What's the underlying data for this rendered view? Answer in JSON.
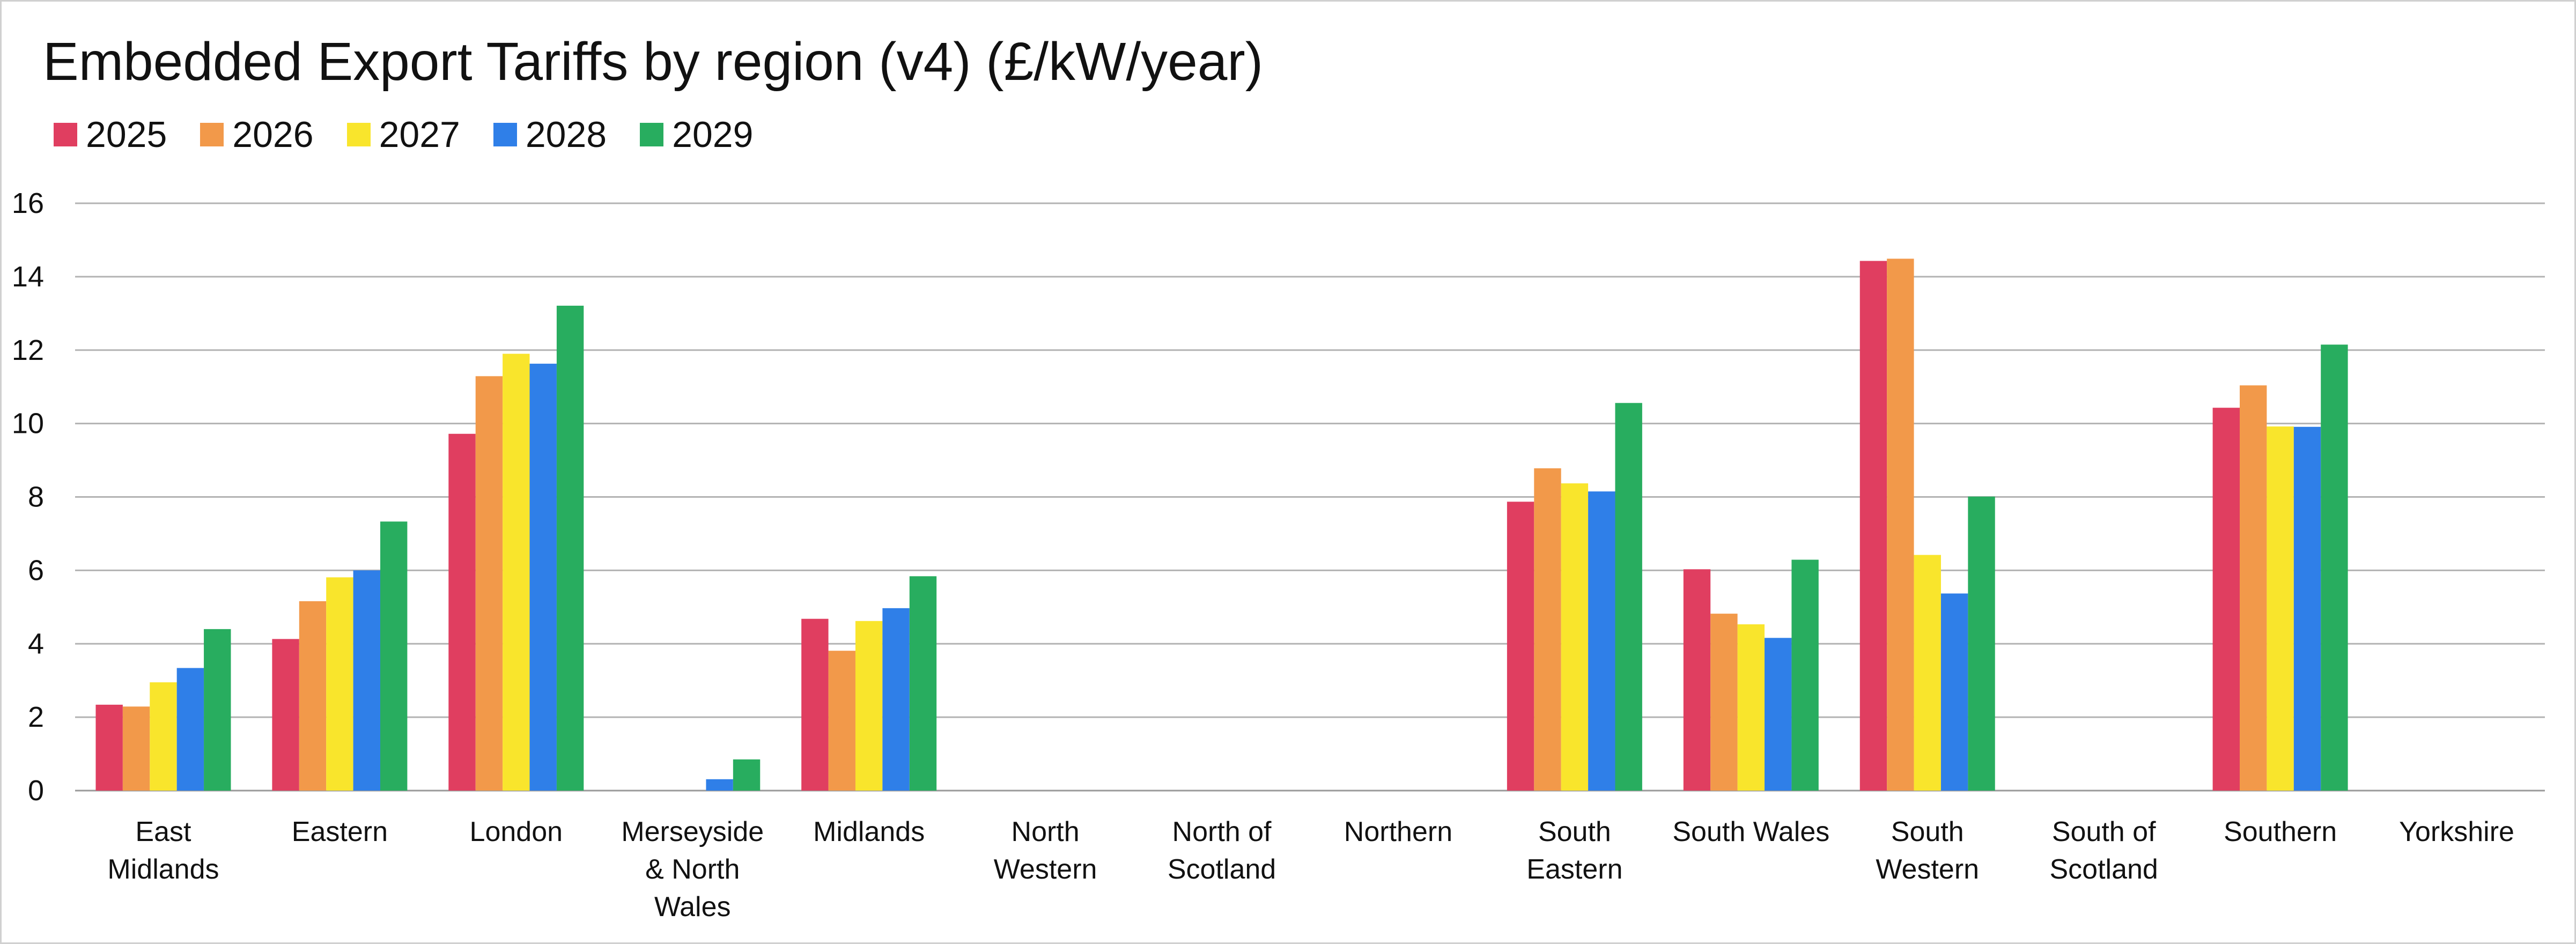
{
  "chart_data": {
    "type": "bar",
    "title": "Embedded Export Tariffs by region (v4) (£/kW/year)",
    "xlabel": "",
    "ylabel": "",
    "ylim": [
      0,
      16
    ],
    "yticks": [
      0,
      2,
      4,
      6,
      8,
      10,
      12,
      14,
      16
    ],
    "grid": true,
    "legend_position": "top-left",
    "categories": [
      "East Midlands",
      "Eastern",
      "London",
      "Merseyside & North Wales",
      "Midlands",
      "North Western",
      "North of Scotland",
      "Northern",
      "South Eastern",
      "South Wales",
      "South Western",
      "South of Scotland",
      "Southern",
      "Yorkshire"
    ],
    "category_label_lines": [
      [
        "East",
        "Midlands"
      ],
      [
        "Eastern"
      ],
      [
        "London"
      ],
      [
        "Merseyside",
        "& North",
        "Wales"
      ],
      [
        "Midlands"
      ],
      [
        "North",
        "Western"
      ],
      [
        "North of",
        "Scotland"
      ],
      [
        "Northern"
      ],
      [
        "South",
        "Eastern"
      ],
      [
        "South Wales"
      ],
      [
        "South",
        "Western"
      ],
      [
        "South of",
        "Scotland"
      ],
      [
        "Southern"
      ],
      [
        "Yorkshire"
      ]
    ],
    "series": [
      {
        "name": "2025",
        "color": "#e03e60",
        "values": [
          2.34,
          4.13,
          9.72,
          0,
          4.68,
          0,
          0,
          0,
          7.87,
          6.03,
          14.43,
          0,
          10.43,
          0
        ]
      },
      {
        "name": "2026",
        "color": "#f2994a",
        "values": [
          2.29,
          5.16,
          11.29,
          0,
          3.81,
          0,
          0,
          0,
          8.78,
          4.82,
          14.49,
          0,
          11.04,
          0
        ]
      },
      {
        "name": "2027",
        "color": "#f9e52c",
        "values": [
          2.95,
          5.81,
          11.9,
          0,
          4.62,
          0,
          0,
          0,
          8.37,
          4.53,
          6.42,
          0,
          9.92,
          0
        ]
      },
      {
        "name": "2028",
        "color": "#2f7fe8",
        "values": [
          3.34,
          6.0,
          11.63,
          0.31,
          4.97,
          0,
          0,
          0,
          8.15,
          4.16,
          5.37,
          0,
          9.91,
          0
        ]
      },
      {
        "name": "2029",
        "color": "#28ad5f",
        "values": [
          4.4,
          7.33,
          13.21,
          0.85,
          5.84,
          0,
          0,
          0,
          10.56,
          6.29,
          8.01,
          0,
          12.15,
          0
        ]
      }
    ]
  }
}
